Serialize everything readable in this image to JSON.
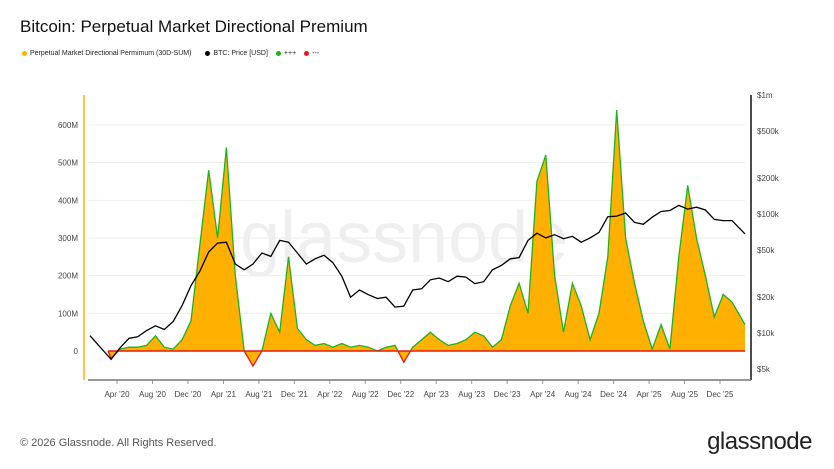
{
  "title": "Bitcoin: Perpetual Market Directional Premium",
  "footer": "© 2026 Glassnode. All Rights Reserved.",
  "brand": "glassnode",
  "watermark": "glassnode",
  "colors": {
    "area": "#ffb000",
    "positive": "#1cb31c",
    "negative": "#e31a1a",
    "price": "#000000",
    "left_axis": "#f5b400"
  },
  "chart_data": {
    "type": "area",
    "title": "Bitcoin: Perpetual Market Directional Premium",
    "legend": [
      {
        "label": "Perpetual Market Directional Permimum (30D-SUM)",
        "color": "#ffb000"
      },
      {
        "label": "BTC: Price [USD]",
        "color": "#000000"
      },
      {
        "label": "+++",
        "color": "#1cb31c"
      },
      {
        "label": "---",
        "color": "#e31a1a"
      }
    ],
    "legend_placement": "top-left",
    "x_ticks": [
      "Apr '20",
      "Aug '20",
      "Dec '20",
      "Apr '21",
      "Aug '21",
      "Dec '21",
      "Apr '22",
      "Aug '22",
      "Dec '22",
      "Apr '23",
      "Aug '23",
      "Dec '23",
      "Apr '24",
      "Aug '24",
      "Dec '24",
      "Apr '25",
      "Aug '25",
      "Dec '25"
    ],
    "y_left": {
      "ticks": [
        "0",
        "100M",
        "200M",
        "300M",
        "400M",
        "500M",
        "600M"
      ],
      "tick_values": [
        0,
        100,
        200,
        300,
        400,
        500,
        600
      ],
      "unit": "M",
      "range": [
        -50,
        680
      ]
    },
    "y_right": {
      "scale": "log",
      "ticks": [
        "$5k",
        "$10k",
        "$20k",
        "$50k",
        "$100k",
        "$200k",
        "$500k",
        "$1m"
      ],
      "tick_values": [
        5000,
        10000,
        20000,
        50000,
        100000,
        200000,
        500000,
        1000000
      ]
    },
    "grid": true,
    "x": [
      "2020-02",
      "2020-03",
      "2020-04",
      "2020-05",
      "2020-06",
      "2020-07",
      "2020-08",
      "2020-09",
      "2020-10",
      "2020-11",
      "2020-12",
      "2021-01",
      "2021-02",
      "2021-03",
      "2021-04",
      "2021-05",
      "2021-06",
      "2021-07",
      "2021-08",
      "2021-09",
      "2021-10",
      "2021-11",
      "2021-12",
      "2022-01",
      "2022-02",
      "2022-03",
      "2022-04",
      "2022-05",
      "2022-06",
      "2022-07",
      "2022-08",
      "2022-09",
      "2022-10",
      "2022-11",
      "2022-12",
      "2023-01",
      "2023-02",
      "2023-03",
      "2023-04",
      "2023-05",
      "2023-06",
      "2023-07",
      "2023-08",
      "2023-09",
      "2023-10",
      "2023-11",
      "2023-12",
      "2024-01",
      "2024-02",
      "2024-03",
      "2024-04",
      "2024-05",
      "2024-06",
      "2024-07",
      "2024-08",
      "2024-09",
      "2024-10",
      "2024-11",
      "2024-12",
      "2025-01",
      "2025-02",
      "2025-03",
      "2025-04",
      "2025-05",
      "2025-06",
      "2025-07",
      "2025-08",
      "2025-09",
      "2025-10",
      "2025-11",
      "2025-12",
      "2026-01",
      "2026-02"
    ],
    "series": [
      {
        "name": "Perpetual Market Directional Permimum (30D-SUM)",
        "axis": "left",
        "values": [
          0,
          -20,
          5,
          10,
          10,
          15,
          40,
          10,
          5,
          30,
          80,
          280,
          480,
          300,
          540,
          200,
          0,
          -40,
          0,
          100,
          50,
          250,
          60,
          30,
          15,
          20,
          10,
          20,
          10,
          15,
          10,
          0,
          10,
          15,
          -30,
          10,
          30,
          50,
          30,
          15,
          20,
          30,
          50,
          40,
          10,
          30,
          120,
          180,
          100,
          450,
          520,
          200,
          50,
          180,
          120,
          30,
          100,
          250,
          640,
          300,
          180,
          80,
          5,
          70,
          5,
          250,
          440,
          300,
          200,
          90,
          150,
          130,
          70
        ]
      },
      {
        "name": "BTC: Price [USD]",
        "axis": "right",
        "values": [
          9500,
          6000,
          7500,
          9000,
          9300,
          10500,
          11500,
          10700,
          12500,
          17000,
          25000,
          33000,
          48000,
          57000,
          58000,
          38000,
          34000,
          38000,
          47000,
          44000,
          60000,
          58000,
          47000,
          38000,
          42000,
          45000,
          39000,
          30000,
          20000,
          23000,
          21000,
          19500,
          20000,
          16500,
          16800,
          23000,
          23500,
          28000,
          29000,
          27000,
          30000,
          29500,
          26000,
          27000,
          34000,
          37000,
          42000,
          43000,
          60000,
          69000,
          63000,
          67000,
          62000,
          65000,
          58000,
          63000,
          70000,
          95000,
          96000,
          102000,
          85000,
          82000,
          94000,
          105000,
          107000,
          118000,
          110000,
          114000,
          108000,
          90000,
          88000,
          88000,
          68000
        ]
      }
    ]
  }
}
